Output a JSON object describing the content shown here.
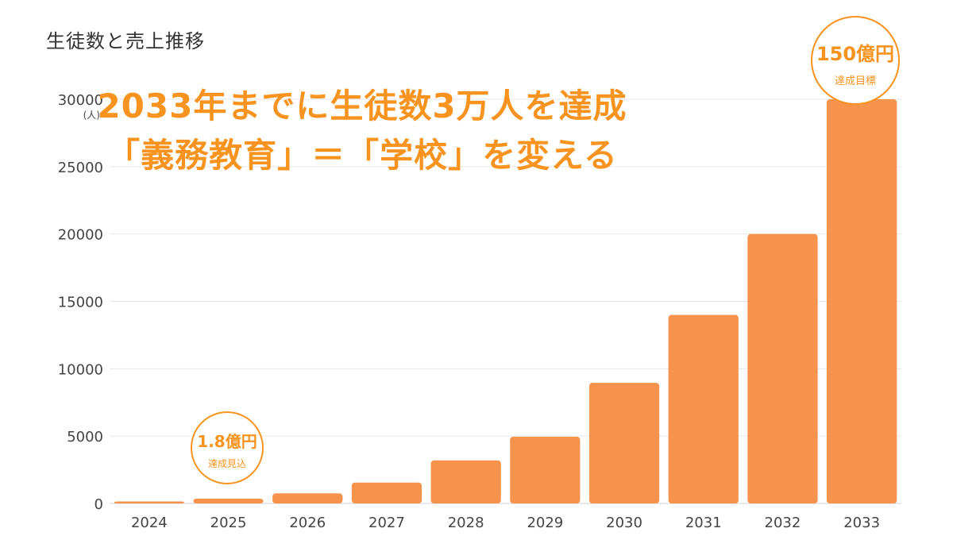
{
  "chart_data": {
    "type": "bar",
    "title": "生徒数と売上推移",
    "y_unit_label": "(人)",
    "categories": [
      "2024",
      "2025",
      "2026",
      "2027",
      "2028",
      "2029",
      "2030",
      "2031",
      "2032",
      "2033"
    ],
    "values": [
      150,
      350,
      750,
      1550,
      3200,
      4950,
      8950,
      14000,
      20000,
      30000
    ],
    "ylim": [
      0,
      30000
    ],
    "yticks": [
      0,
      5000,
      10000,
      15000,
      20000,
      25000,
      30000
    ],
    "grid": true,
    "bar_color": "#f7934c",
    "grid_color": "#e6e6e6",
    "accent_color": "#f7931e"
  },
  "headline": {
    "line1": "2033年までに生徒数3万人を達成",
    "line2": "「義務教育」＝「学校」を変える"
  },
  "callouts": {
    "c2025": {
      "main": "1.8億円",
      "sub": "達成見込"
    },
    "c2033": {
      "main": "150億円",
      "sub": "達成目標"
    }
  }
}
